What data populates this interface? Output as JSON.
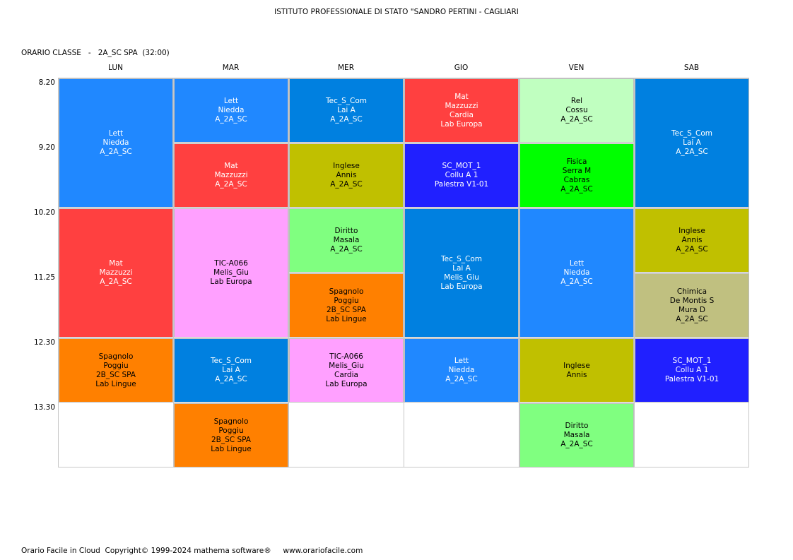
{
  "school_title": "ISTITUTO PROFESSIONALE DI STATO \"SANDRO PERTINI - CAGLIARI",
  "class_title": "ORARIO CLASSE   -   2A_SC SPA  (32:00)",
  "days": [
    "LUN",
    "MAR",
    "MER",
    "GIO",
    "VEN",
    "SAB"
  ],
  "times": [
    "8.20",
    "9.20",
    "10.20",
    "11.25",
    "12.30",
    "13.30"
  ],
  "lessons": {
    "lun": [
      {
        "lines": [
          "Lett",
          "Niedda",
          "A_2A_SC"
        ],
        "color": "#2088ff"
      },
      {
        "lines": [
          "Mat",
          "Mazzuzzi",
          "A_2A_SC"
        ],
        "color": "#ff4040"
      },
      {
        "lines": [
          "Spagnolo",
          "Poggiu",
          "2B_SC SPA",
          "Lab Lingue"
        ],
        "color": "#ff8000"
      }
    ],
    "mar": [
      {
        "lines": [
          "Lett",
          "Niedda",
          "A_2A_SC"
        ],
        "color": "#2088ff"
      },
      {
        "lines": [
          "Mat",
          "Mazzuzzi",
          "A_2A_SC"
        ],
        "color": "#ff4040"
      },
      {
        "lines": [
          "TIC-A066",
          "Melis_Giu",
          "Lab Europa"
        ],
        "color": "#ffa0ff"
      },
      {
        "lines": [
          "Tec_S_Com",
          "Lai A",
          "A_2A_SC"
        ],
        "color": "#0080e0"
      },
      {
        "lines": [
          "Spagnolo",
          "Poggiu",
          "2B_SC SPA",
          "Lab Lingue"
        ],
        "color": "#ff8000"
      }
    ],
    "mer": [
      {
        "lines": [
          "Tec_S_Com",
          "Lai A",
          "A_2A_SC"
        ],
        "color": "#0080e0"
      },
      {
        "lines": [
          "Inglese",
          "Annis",
          "A_2A_SC"
        ],
        "color": "#c0c000"
      },
      {
        "lines": [
          "Diritto",
          "Masala",
          "A_2A_SC"
        ],
        "color": "#80ff80"
      },
      {
        "lines": [
          "Spagnolo",
          "Poggiu",
          "2B_SC SPA",
          "Lab Lingue"
        ],
        "color": "#ff8000"
      },
      {
        "lines": [
          "TIC-A066",
          "Melis_Giu",
          "Cardia",
          "Lab Europa"
        ],
        "color": "#ffa0ff"
      }
    ],
    "gio": [
      {
        "lines": [
          "Mat",
          "Mazzuzzi",
          "Cardia",
          "Lab Europa"
        ],
        "color": "#ff4040"
      },
      {
        "lines": [
          "SC_MOT_1",
          "Collu A 1",
          "Palestra V1-01"
        ],
        "color": "#2020ff"
      },
      {
        "lines": [
          "Tec_S_Com",
          "Lai A",
          "Melis_Giu",
          "Lab Europa"
        ],
        "color": "#0080e0"
      },
      {
        "lines": [
          "Lett",
          "Niedda",
          "A_2A_SC"
        ],
        "color": "#2088ff"
      }
    ],
    "ven": [
      {
        "lines": [
          "Rel",
          "Cossu",
          "A_2A_SC"
        ],
        "color": "#c0ffc0"
      },
      {
        "lines": [
          "Fisica",
          "Serra M",
          "Cabras",
          "A_2A_SC"
        ],
        "color": "#00ff00"
      },
      {
        "lines": [
          "Lett",
          "Niedda",
          "A_2A_SC"
        ],
        "color": "#2088ff"
      },
      {
        "lines": [
          "Inglese",
          "Annis"
        ],
        "color": "#c0c000"
      },
      {
        "lines": [
          "Diritto",
          "Masala",
          "A_2A_SC"
        ],
        "color": "#80ff80"
      }
    ],
    "sab": [
      {
        "lines": [
          "Tec_S_Com",
          "Lai A",
          "A_2A_SC"
        ],
        "color": "#0080e0"
      },
      {
        "lines": [
          "Inglese",
          "Annis",
          "A_2A_SC"
        ],
        "color": "#c0c000"
      },
      {
        "lines": [
          "Chimica",
          "De Montis S",
          "Mura D",
          "A_2A_SC"
        ],
        "color": "#c0c080"
      },
      {
        "lines": [
          "SC_MOT_1",
          "Collu A 1",
          "Palestra V1-01"
        ],
        "color": "#2020ff"
      }
    ]
  },
  "footer": "Orario Facile in Cloud  Copyright© 1999-2024 mathema software®     www.orariofacile.com"
}
